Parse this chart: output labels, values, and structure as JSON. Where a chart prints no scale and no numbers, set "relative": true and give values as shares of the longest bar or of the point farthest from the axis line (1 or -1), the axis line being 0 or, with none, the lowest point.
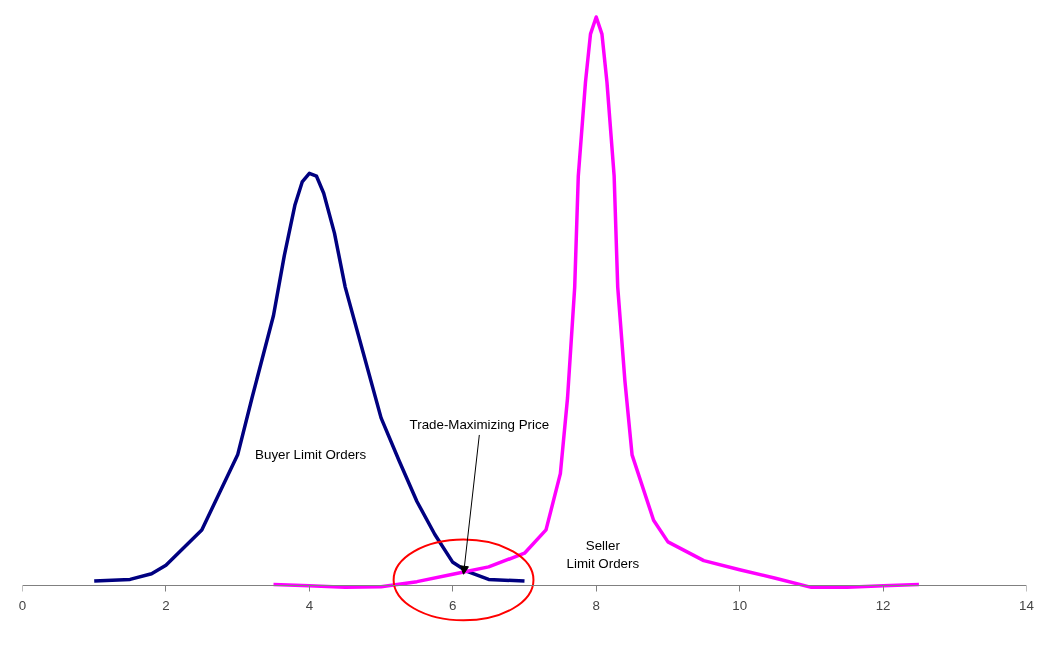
{
  "chart_data": {
    "type": "line",
    "relative": true,
    "xlim": [
      0,
      14
    ],
    "xticks": [
      0,
      2,
      4,
      6,
      8,
      10,
      12,
      14
    ],
    "grid": false,
    "marker": "none",
    "line_style": "solid",
    "series": [
      {
        "color": "#000080",
        "x": [
          1,
          1.5,
          1.8,
          2,
          2.5,
          3,
          3.2,
          3.5,
          3.65,
          3.8,
          3.9,
          4,
          4.1,
          4.2,
          4.35,
          4.5,
          4.75,
          5,
          5.25,
          5.5,
          5.75,
          6,
          6.2,
          6.5,
          7
        ],
        "values": [
          0.008,
          0.011,
          0.021,
          0.036,
          0.098,
          0.23,
          0.33,
          0.475,
          0.58,
          0.67,
          0.71,
          0.725,
          0.72,
          0.69,
          0.62,
          0.525,
          0.41,
          0.295,
          0.22,
          0.148,
          0.09,
          0.041,
          0.025,
          0.011,
          0.008
        ]
      },
      {
        "color": "#ff00ff",
        "x": [
          3.5,
          4,
          4.5,
          5,
          5.5,
          6,
          6.5,
          7,
          7.3,
          7.5,
          7.6,
          7.7,
          7.75,
          7.85,
          7.92,
          8,
          8.08,
          8.15,
          8.25,
          8.3,
          8.4,
          8.5,
          8.8,
          9,
          9.5,
          10,
          10.5,
          11,
          11.5,
          12,
          12.5
        ],
        "values": [
          0.002,
          0,
          -0.003,
          -0.002,
          0.007,
          0.02,
          0.033,
          0.057,
          0.098,
          0.197,
          0.33,
          0.525,
          0.72,
          0.885,
          0.97,
          1,
          0.97,
          0.885,
          0.72,
          0.525,
          0.36,
          0.23,
          0.115,
          0.077,
          0.044,
          0.028,
          0.013,
          -0.003,
          -0.003,
          0,
          0.002
        ]
      }
    ],
    "annotations": [
      "Buyer Limit Orders",
      "Seller\nLimit Orders",
      {
        "text": "Trade-Maximizing Price",
        "x": 6.15,
        "y": 0.02
      }
    ]
  }
}
